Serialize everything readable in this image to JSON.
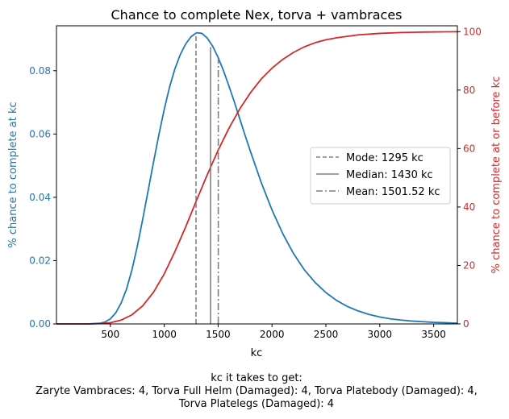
{
  "chart_data": {
    "type": "line",
    "title": "Chance to complete Nex, torva + vambraces",
    "xlabel": "kc",
    "ylabel_left": "% chance to complete at kc",
    "ylabel_right": "% chance to complete at or before kc",
    "xlim": [
      0,
      3720
    ],
    "ylim_left": [
      0,
      0.0942
    ],
    "ylim_right": [
      0,
      102
    ],
    "x_ticks": [
      500,
      1000,
      1500,
      2000,
      2500,
      3000,
      3500
    ],
    "y_ticks_left": [
      0.0,
      0.02,
      0.04,
      0.06,
      0.08
    ],
    "y_tick_labels_left": [
      "0.00",
      "0.02",
      "0.04",
      "0.06",
      "0.08"
    ],
    "y_ticks_right": [
      0,
      20,
      40,
      60,
      80,
      100
    ],
    "colors": {
      "left_axis": "#1f77b4",
      "right_axis": "#d62728",
      "stat_lines": "#808080"
    },
    "series": [
      {
        "axis": "left",
        "color": "#1f77b4",
        "x": [
          0,
          200,
          300,
          400,
          450,
          500,
          550,
          600,
          650,
          700,
          750,
          800,
          850,
          900,
          950,
          1000,
          1050,
          1100,
          1150,
          1200,
          1250,
          1300,
          1350,
          1400,
          1450,
          1500,
          1550,
          1600,
          1650,
          1700,
          1750,
          1800,
          1900,
          2000,
          2100,
          2200,
          2300,
          2400,
          2500,
          2600,
          2700,
          2800,
          2900,
          3000,
          3100,
          3200,
          3300,
          3400,
          3500,
          3600,
          3720
        ],
        "values": [
          0,
          0,
          1e-05,
          0.0002,
          0.0006,
          0.0016,
          0.0035,
          0.0066,
          0.011,
          0.017,
          0.0245,
          0.033,
          0.042,
          0.051,
          0.0597,
          0.0678,
          0.0749,
          0.0807,
          0.0852,
          0.0885,
          0.0908,
          0.092,
          0.0918,
          0.0903,
          0.0877,
          0.0842,
          0.08,
          0.0752,
          0.0702,
          0.0649,
          0.0596,
          0.0545,
          0.0447,
          0.036,
          0.0285,
          0.0222,
          0.0171,
          0.0131,
          0.0099,
          0.0074,
          0.0055,
          0.0041,
          0.003,
          0.0022,
          0.0016,
          0.0012,
          0.0009,
          0.0007,
          0.0005,
          0.0004,
          0.0002
        ]
      },
      {
        "axis": "right",
        "color": "#d62728",
        "x": [
          0,
          300,
          400,
          500,
          600,
          700,
          800,
          900,
          1000,
          1100,
          1200,
          1300,
          1400,
          1500,
          1600,
          1700,
          1800,
          1900,
          2000,
          2100,
          2200,
          2300,
          2400,
          2500,
          2600,
          2800,
          3000,
          3200,
          3400,
          3600,
          3720
        ],
        "values": [
          0,
          0,
          0.1,
          0.4,
          1.3,
          3.1,
          6.2,
          10.8,
          17.1,
          24.8,
          33.3,
          42.3,
          51.1,
          59.4,
          66.9,
          73.5,
          79.1,
          83.8,
          87.5,
          90.5,
          92.9,
          94.8,
          96.2,
          97.2,
          97.9,
          98.9,
          99.4,
          99.7,
          99.85,
          99.93,
          99.96
        ]
      }
    ],
    "vlines": [
      {
        "label": "Mode: 1295 kc",
        "x": 1295,
        "style": "dashed",
        "y_top": 0.092
      },
      {
        "label": "Median: 1430 kc",
        "x": 1430,
        "style": "solid",
        "y_top": 0.0875
      },
      {
        "label": "Mean: 1501.52 kc",
        "x": 1501.52,
        "style": "dashdot",
        "y_top": 0.0838
      }
    ],
    "legend_position": "center-right",
    "grid": false
  },
  "caption": {
    "line1": "kc it takes to get:",
    "line2": "Zaryte Vambraces: 4,  Torva Full Helm (Damaged): 4,  Torva Platebody (Damaged): 4,",
    "line3": "Torva Platelegs (Damaged): 4"
  }
}
